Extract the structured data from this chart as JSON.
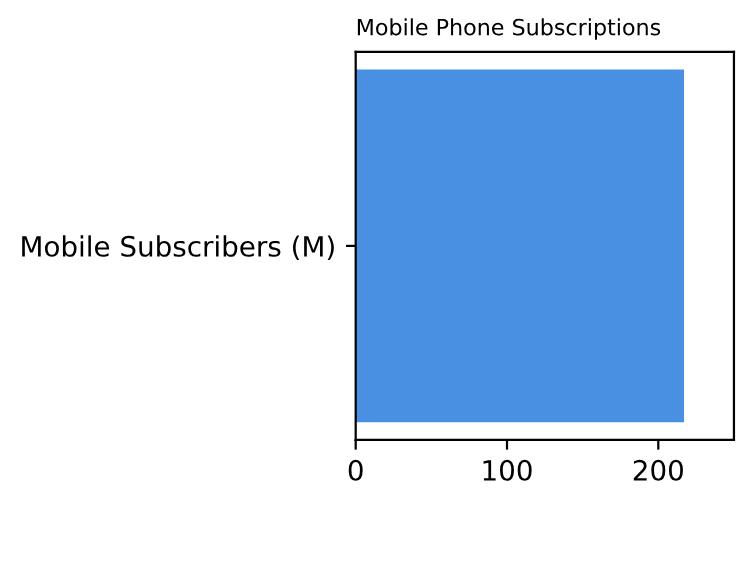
{
  "chart_data": {
    "type": "bar",
    "orientation": "horizontal",
    "title": "Mobile Phone Subscriptions",
    "categories": [
      "Mobile Subscribers (M)"
    ],
    "values": [
      217
    ],
    "color": "#4a90e2",
    "xlim": [
      0,
      250
    ],
    "xticks": [
      0,
      100,
      200
    ],
    "grid": false
  }
}
